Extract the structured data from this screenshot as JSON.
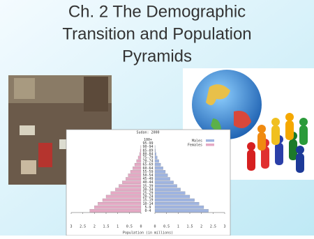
{
  "title_lines": [
    "Ch. 2 The Demographic",
    "Transition and Population",
    "Pyramids"
  ],
  "chart_data": {
    "type": "pyramid",
    "title": "Sudan: 2000",
    "xlabel": "Population (in millions)",
    "categories": [
      "0-4",
      "5-9",
      "10-14",
      "15-19",
      "20-24",
      "25-29",
      "30-34",
      "35-39",
      "40-44",
      "45-49",
      "50-54",
      "55-59",
      "60-64",
      "65-69",
      "70-74",
      "75-79",
      "80-84",
      "85-89",
      "90-94",
      "95-99",
      "100+"
    ],
    "series": [
      {
        "name": "Males",
        "color": "#9fb4e0",
        "values": [
          2.3,
          2.1,
          1.9,
          1.7,
          1.5,
          1.3,
          1.1,
          0.95,
          0.8,
          0.65,
          0.55,
          0.45,
          0.35,
          0.25,
          0.17,
          0.1,
          0.05,
          0.02,
          0.01,
          0,
          0
        ]
      },
      {
        "name": "Females",
        "color": "#e4a9c4",
        "values": [
          2.2,
          2.0,
          1.85,
          1.65,
          1.5,
          1.3,
          1.1,
          0.95,
          0.8,
          0.65,
          0.55,
          0.45,
          0.35,
          0.27,
          0.19,
          0.12,
          0.06,
          0.03,
          0.01,
          0,
          0
        ]
      }
    ],
    "xlim": [
      0,
      3
    ],
    "xticks": [
      0,
      0.5,
      1,
      1.5,
      2,
      2.5,
      3
    ]
  }
}
